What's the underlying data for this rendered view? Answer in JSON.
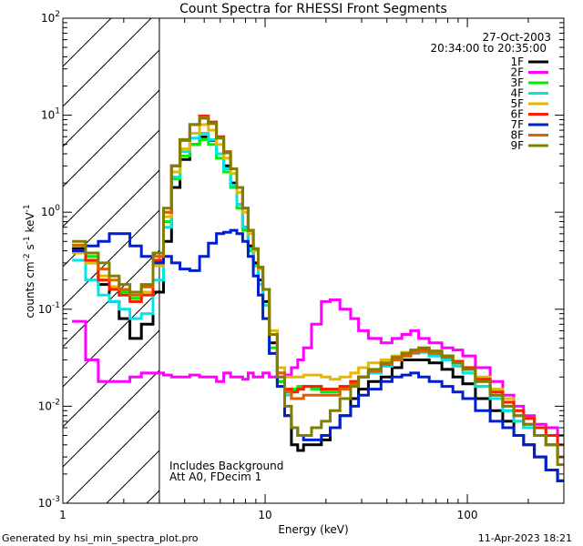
{
  "chart_data": {
    "type": "line",
    "title": "Count Spectra for RHESSI Front Segments",
    "xlabel": "Energy (keV)",
    "ylabel_parts": [
      "counts cm",
      "-2",
      " s",
      "-1",
      " keV",
      "-1"
    ],
    "xscale": "log",
    "yscale": "log",
    "xlim": [
      1,
      300
    ],
    "ylim": [
      0.001,
      100
    ],
    "x_ticks": [
      {
        "value": 1,
        "label": "1"
      },
      {
        "value": 10,
        "label": "10"
      },
      {
        "value": 100,
        "label": "100"
      }
    ],
    "y_ticks": [
      {
        "value": 0.001,
        "base": "10",
        "exp": "-3"
      },
      {
        "value": 0.01,
        "base": "10",
        "exp": "-2"
      },
      {
        "value": 0.1,
        "base": "10",
        "exp": "-1"
      },
      {
        "value": 1,
        "base": "10",
        "exp": "0"
      },
      {
        "value": 10,
        "base": "10",
        "exp": "1"
      },
      {
        "value": 100,
        "base": "10",
        "exp": "2"
      }
    ],
    "shaded_region_below_keV": 3,
    "date": "27-Oct-2003",
    "time_range": "20:34:00 to 20:35:00",
    "annotations": [
      "Includes Background",
      "Att A0, FDecim 1"
    ],
    "legend_position": "top-right",
    "energy_bins": [
      1.2,
      1.4,
      1.6,
      1.8,
      2.0,
      2.3,
      2.6,
      3.0,
      3.3,
      3.6,
      4.0,
      4.5,
      5.0,
      5.5,
      6.0,
      6.5,
      7.0,
      7.5,
      8.0,
      8.5,
      9.0,
      9.5,
      10,
      11,
      12,
      13,
      14,
      15,
      16,
      18,
      20,
      22,
      25,
      28,
      30,
      35,
      40,
      45,
      50,
      55,
      60,
      70,
      80,
      90,
      100,
      120,
      140,
      160,
      180,
      200,
      230,
      260,
      300
    ],
    "series": [
      {
        "name": "1F",
        "color": "#000000",
        "values": [
          0.42,
          0.3,
          0.18,
          0.12,
          0.08,
          0.05,
          0.07,
          0.15,
          0.5,
          1.8,
          3.5,
          5.0,
          6.0,
          5.5,
          4.0,
          3.0,
          2.0,
          1.2,
          0.7,
          0.45,
          0.3,
          0.2,
          0.12,
          0.045,
          0.018,
          0.008,
          0.004,
          0.0035,
          0.004,
          0.004,
          0.0045,
          0.006,
          0.008,
          0.012,
          0.015,
          0.018,
          0.02,
          0.025,
          0.03,
          0.03,
          0.03,
          0.028,
          0.024,
          0.02,
          0.017,
          0.012,
          0.009,
          0.007,
          0.005,
          0.004,
          0.003,
          0.0022,
          0.0017
        ]
      },
      {
        "name": "2F",
        "color": "#ff00ff",
        "values": [
          0.075,
          0.03,
          0.018,
          0.018,
          0.018,
          0.02,
          0.022,
          0.022,
          0.021,
          0.02,
          0.02,
          0.021,
          0.02,
          0.02,
          0.018,
          0.022,
          0.02,
          0.02,
          0.019,
          0.022,
          0.02,
          0.02,
          0.022,
          0.02,
          0.02,
          0.021,
          0.025,
          0.03,
          0.04,
          0.07,
          0.12,
          0.125,
          0.1,
          0.08,
          0.06,
          0.05,
          0.045,
          0.05,
          0.055,
          0.06,
          0.05,
          0.045,
          0.04,
          0.038,
          0.033,
          0.025,
          0.018,
          0.013,
          0.01,
          0.008,
          0.0065,
          0.006,
          0.005
        ]
      },
      {
        "name": "3F",
        "color": "#00ee00",
        "values": [
          0.45,
          0.35,
          0.2,
          0.17,
          0.15,
          0.13,
          0.15,
          0.3,
          0.8,
          2.2,
          3.8,
          5.0,
          5.6,
          5.0,
          3.6,
          2.6,
          1.8,
          1.1,
          0.65,
          0.4,
          0.28,
          0.18,
          0.11,
          0.04,
          0.018,
          0.014,
          0.015,
          0.016,
          0.016,
          0.015,
          0.014,
          0.014,
          0.016,
          0.018,
          0.02,
          0.022,
          0.026,
          0.03,
          0.033,
          0.035,
          0.036,
          0.033,
          0.03,
          0.026,
          0.022,
          0.016,
          0.012,
          0.009,
          0.007,
          0.006,
          0.005,
          0.004,
          0.003
        ]
      },
      {
        "name": "4F",
        "color": "#00e6e6",
        "values": [
          0.32,
          0.2,
          0.14,
          0.12,
          0.1,
          0.08,
          0.09,
          0.2,
          0.7,
          2.3,
          4.2,
          5.8,
          6.5,
          5.6,
          4.0,
          2.8,
          1.9,
          1.2,
          0.7,
          0.42,
          0.28,
          0.18,
          0.11,
          0.035,
          0.016,
          0.013,
          0.014,
          0.015,
          0.016,
          0.016,
          0.015,
          0.015,
          0.016,
          0.018,
          0.02,
          0.022,
          0.026,
          0.03,
          0.033,
          0.035,
          0.036,
          0.033,
          0.03,
          0.026,
          0.022,
          0.016,
          0.012,
          0.009,
          0.007,
          0.006,
          0.005,
          0.004,
          0.003
        ]
      },
      {
        "name": "5F",
        "color": "#e6b800",
        "values": [
          0.38,
          0.3,
          0.22,
          0.17,
          0.14,
          0.12,
          0.15,
          0.28,
          0.9,
          2.6,
          4.5,
          6.5,
          8.0,
          7.0,
          5.0,
          3.6,
          2.5,
          1.6,
          1.0,
          0.6,
          0.4,
          0.26,
          0.16,
          0.06,
          0.025,
          0.02,
          0.02,
          0.02,
          0.021,
          0.021,
          0.02,
          0.019,
          0.02,
          0.022,
          0.025,
          0.028,
          0.03,
          0.033,
          0.036,
          0.038,
          0.04,
          0.037,
          0.033,
          0.029,
          0.025,
          0.02,
          0.015,
          0.012,
          0.009,
          0.0075,
          0.006,
          0.005,
          0.004
        ]
      },
      {
        "name": "6F",
        "color": "#ff1a00",
        "values": [
          0.4,
          0.32,
          0.2,
          0.16,
          0.14,
          0.12,
          0.14,
          0.32,
          1.0,
          3.0,
          5.5,
          8.0,
          9.8,
          8.5,
          6.0,
          4.2,
          2.8,
          1.8,
          1.1,
          0.65,
          0.42,
          0.27,
          0.16,
          0.055,
          0.022,
          0.015,
          0.014,
          0.015,
          0.016,
          0.016,
          0.015,
          0.015,
          0.016,
          0.018,
          0.02,
          0.023,
          0.027,
          0.03,
          0.033,
          0.036,
          0.038,
          0.036,
          0.033,
          0.029,
          0.025,
          0.019,
          0.014,
          0.011,
          0.009,
          0.0075,
          0.006,
          0.005,
          0.004
        ]
      },
      {
        "name": "7F",
        "color": "#0020d0",
        "values": [
          0.4,
          0.45,
          0.5,
          0.6,
          0.6,
          0.45,
          0.35,
          0.3,
          0.35,
          0.3,
          0.26,
          0.25,
          0.35,
          0.48,
          0.6,
          0.62,
          0.65,
          0.6,
          0.5,
          0.35,
          0.22,
          0.14,
          0.08,
          0.035,
          0.016,
          0.008,
          0.006,
          0.005,
          0.0045,
          0.0045,
          0.005,
          0.006,
          0.008,
          0.01,
          0.013,
          0.015,
          0.018,
          0.02,
          0.021,
          0.022,
          0.02,
          0.018,
          0.016,
          0.014,
          0.012,
          0.009,
          0.007,
          0.006,
          0.005,
          0.004,
          0.003,
          0.0022,
          0.0017
        ]
      },
      {
        "name": "8F",
        "color": "#e06000",
        "values": [
          0.46,
          0.38,
          0.26,
          0.2,
          0.16,
          0.14,
          0.17,
          0.35,
          1.0,
          3.0,
          5.6,
          8.0,
          9.5,
          8.2,
          5.8,
          4.1,
          2.8,
          1.8,
          1.1,
          0.65,
          0.42,
          0.27,
          0.16,
          0.055,
          0.022,
          0.014,
          0.012,
          0.012,
          0.013,
          0.013,
          0.013,
          0.013,
          0.015,
          0.017,
          0.02,
          0.023,
          0.027,
          0.03,
          0.033,
          0.036,
          0.037,
          0.035,
          0.032,
          0.028,
          0.024,
          0.018,
          0.013,
          0.01,
          0.008,
          0.0065,
          0.005,
          0.004,
          0.003
        ]
      },
      {
        "name": "9F",
        "color": "#808000",
        "values": [
          0.5,
          0.38,
          0.3,
          0.22,
          0.18,
          0.15,
          0.18,
          0.38,
          1.1,
          3.0,
          5.6,
          8.0,
          9.3,
          8.2,
          5.8,
          4.1,
          2.8,
          1.8,
          1.1,
          0.65,
          0.42,
          0.27,
          0.16,
          0.055,
          0.02,
          0.01,
          0.006,
          0.005,
          0.005,
          0.006,
          0.007,
          0.009,
          0.012,
          0.016,
          0.02,
          0.024,
          0.028,
          0.032,
          0.035,
          0.038,
          0.04,
          0.037,
          0.033,
          0.028,
          0.024,
          0.018,
          0.013,
          0.01,
          0.008,
          0.0065,
          0.005,
          0.004,
          0.0025
        ]
      }
    ]
  },
  "footer": {
    "left": "Generated by hsi_min_spectra_plot.pro",
    "right": "11-Apr-2023 18:21"
  }
}
